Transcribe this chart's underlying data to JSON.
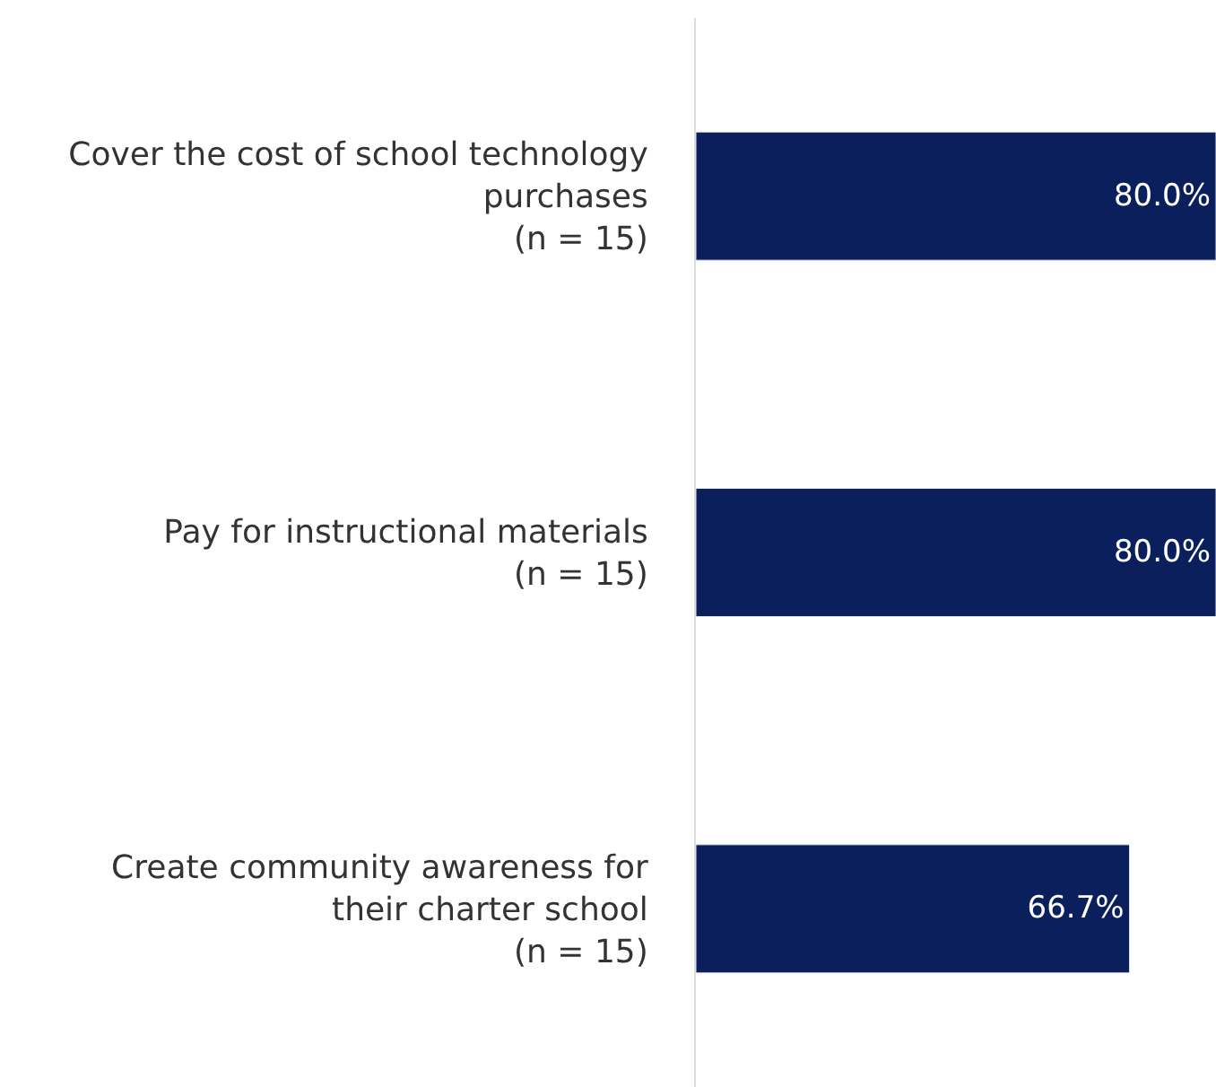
{
  "chart_data": {
    "type": "bar",
    "orientation": "horizontal",
    "categories": [
      "Cover the cost of school technology\npurchases\n(n = 15)",
      "Pay for instructional materials\n(n = 15)",
      "Create community awareness for\ntheir charter school\n(n = 15)"
    ],
    "values": [
      80.0,
      80.0,
      66.7
    ],
    "value_labels": [
      "80.0%",
      "80.0%",
      "66.7%"
    ],
    "color": "#0b1f5c"
  }
}
